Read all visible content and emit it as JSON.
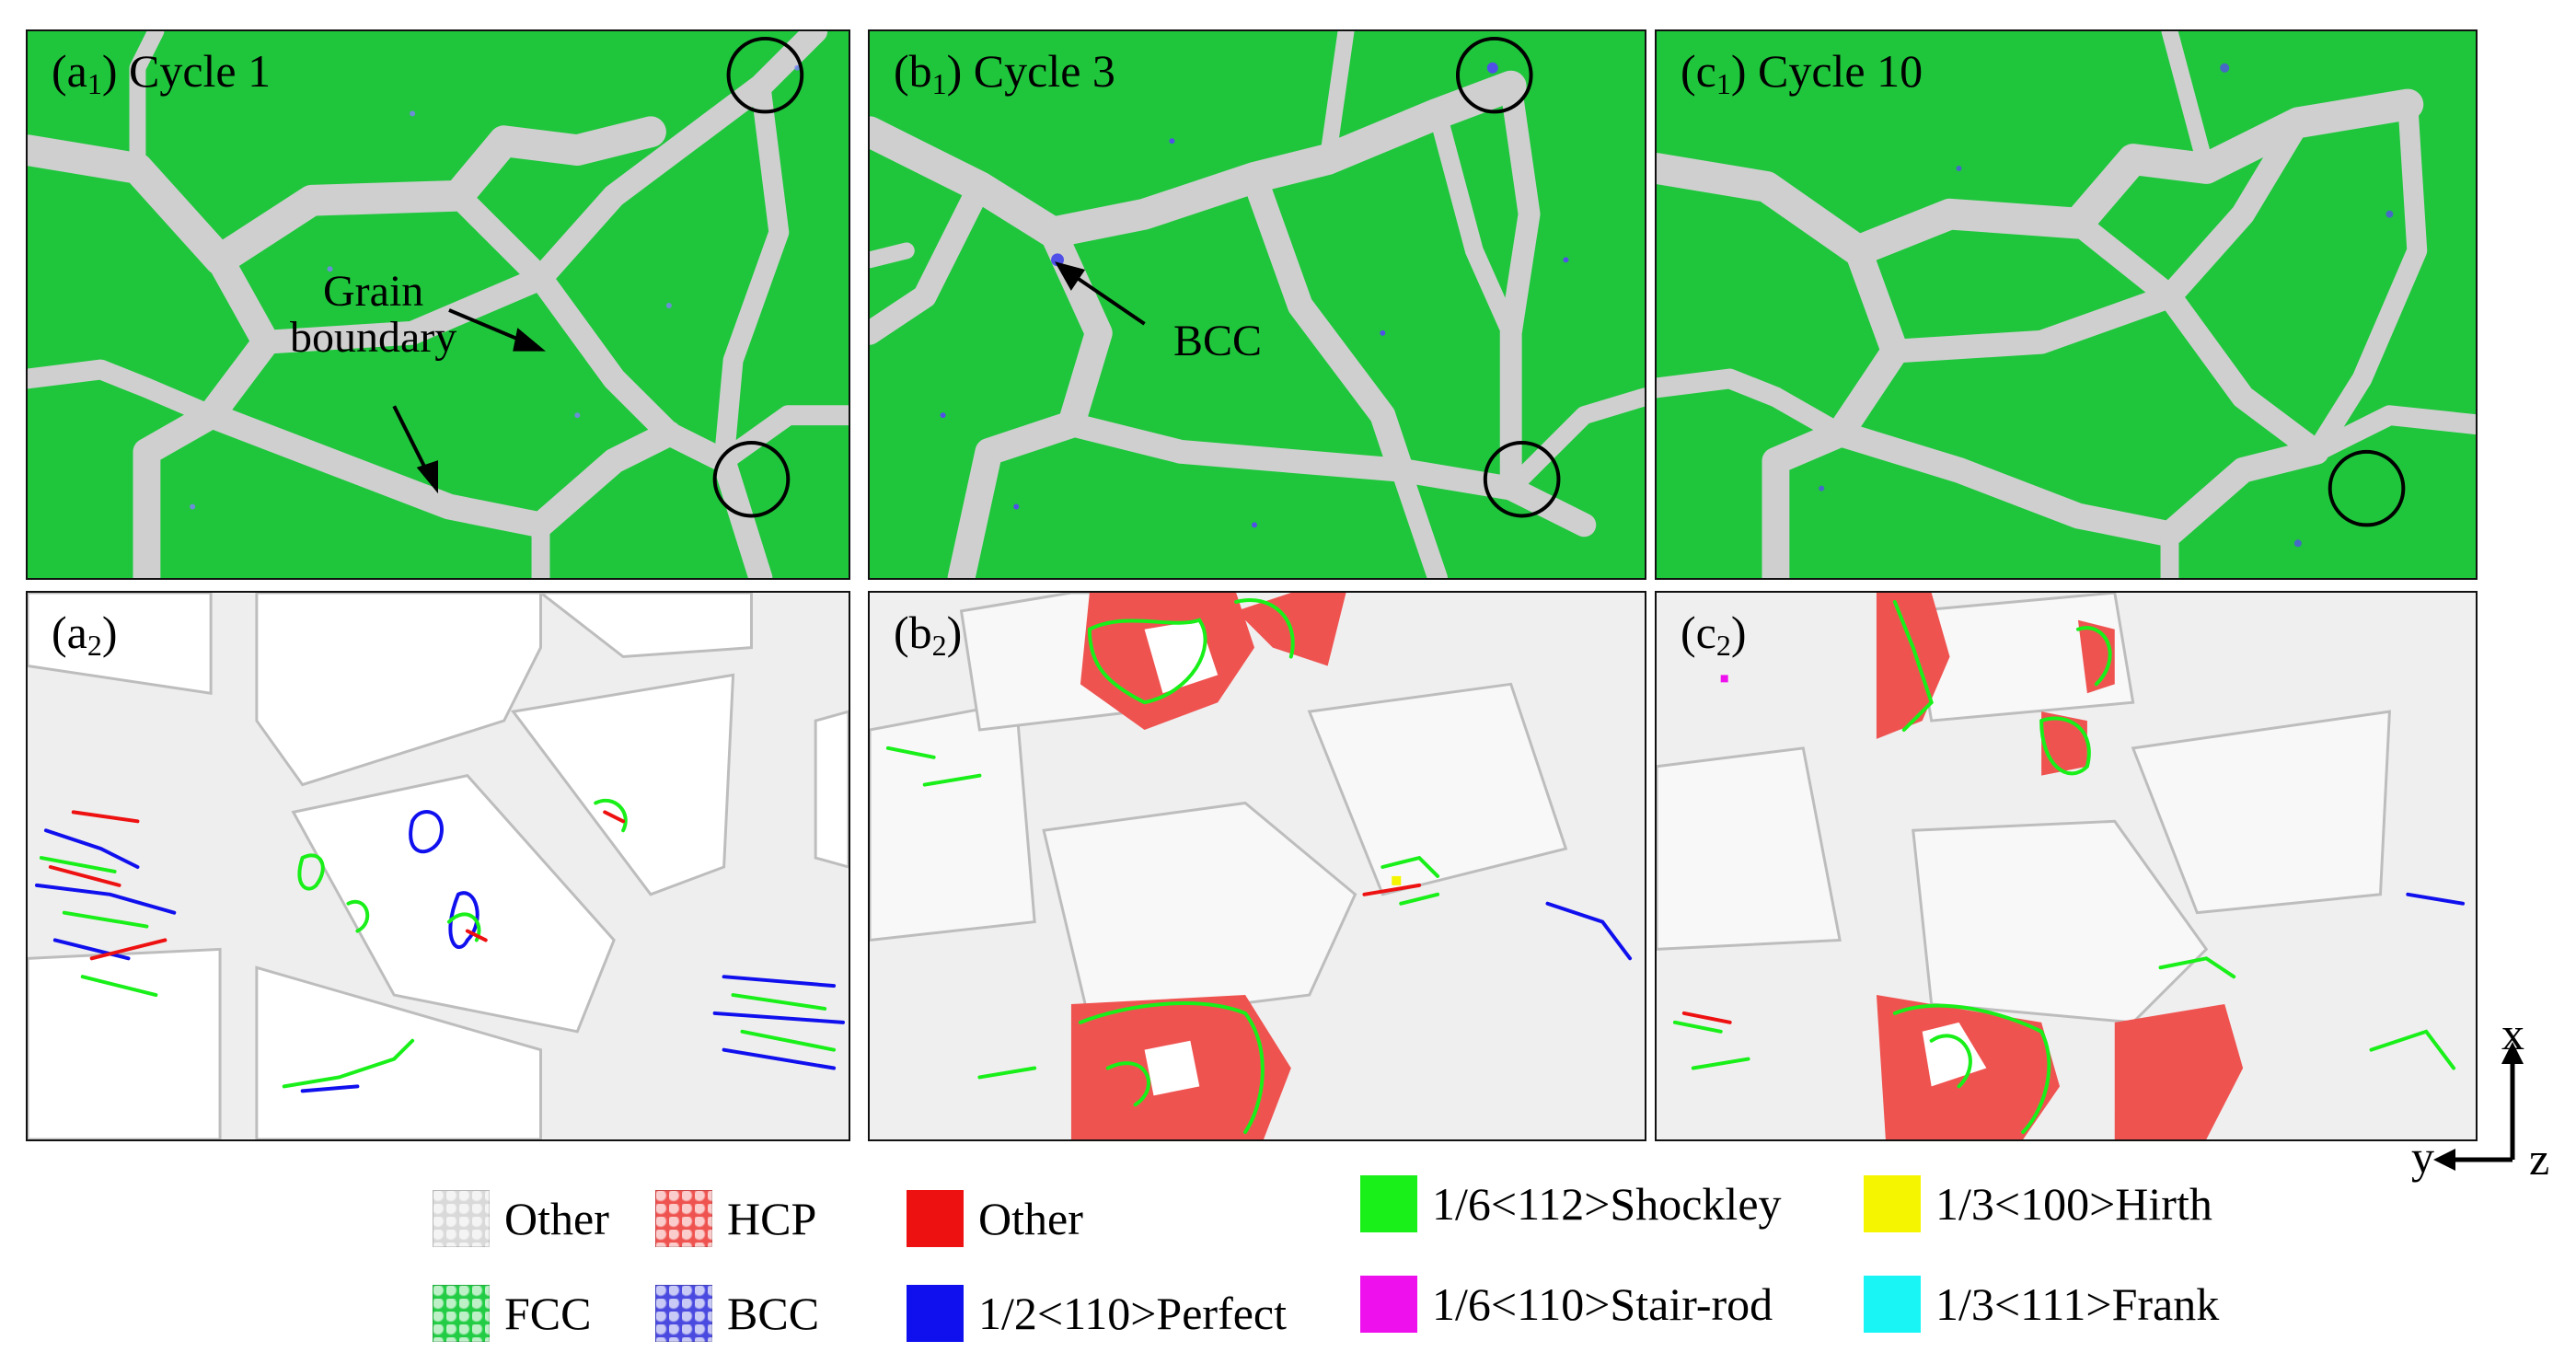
{
  "figure": {
    "panels_top": [
      {
        "id": "a1",
        "prefix": "(a",
        "sub": "1",
        "suffix": ") Cycle 1"
      },
      {
        "id": "b1",
        "prefix": "(b",
        "sub": "1",
        "suffix": ") Cycle 3"
      },
      {
        "id": "c1",
        "prefix": "(c",
        "sub": "1",
        "suffix": ") Cycle 10"
      }
    ],
    "panels_bottom": [
      {
        "id": "a2",
        "prefix": "(a",
        "sub": "2",
        "suffix": ")"
      },
      {
        "id": "b2",
        "prefix": "(b",
        "sub": "2",
        "suffix": ")"
      },
      {
        "id": "c2",
        "prefix": "(c",
        "sub": "2",
        "suffix": ")"
      }
    ],
    "annotations": {
      "grain_boundary_line1": "Grain",
      "grain_boundary_line2": "boundary",
      "bcc": "BCC"
    },
    "axes": {
      "x": "x",
      "y": "y",
      "z": "z"
    }
  },
  "legend": {
    "structures": [
      {
        "label": "Other",
        "color": "#d9d9d9"
      },
      {
        "label": "HCP",
        "color": "#ef5350"
      },
      {
        "label": "FCC",
        "color": "#22cc44"
      },
      {
        "label": "BCC",
        "color": "#4a4ae0"
      }
    ],
    "dislocations": [
      {
        "label": "Other",
        "color": "#ee1111"
      },
      {
        "label": "1/2<110>Perfect",
        "color": "#1010ee"
      },
      {
        "label": "1/6<112>Shockley",
        "color": "#19ef19"
      },
      {
        "label": "1/6<110>Stair-rod",
        "color": "#ee11ee"
      },
      {
        "label": "1/3<100>Hirth",
        "color": "#f5f500"
      },
      {
        "label": "1/3<111>Frank",
        "color": "#19f5f5"
      }
    ]
  }
}
